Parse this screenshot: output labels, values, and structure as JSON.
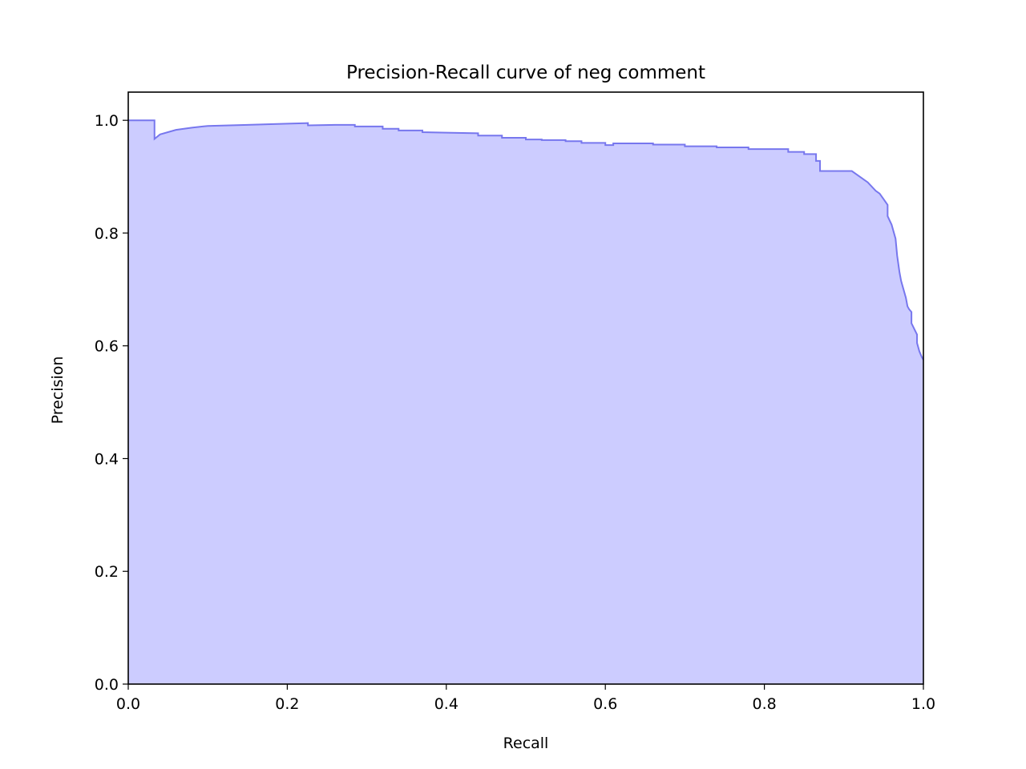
{
  "chart_data": {
    "type": "area",
    "title": "Precision-Recall curve of neg comment",
    "xlabel": "Recall",
    "ylabel": "Precision",
    "xlim": [
      0.0,
      1.0
    ],
    "ylim": [
      0.0,
      1.05
    ],
    "xticks": [
      "0.0",
      "0.2",
      "0.4",
      "0.6",
      "0.8",
      "1.0"
    ],
    "yticks": [
      "0.0",
      "0.2",
      "0.4",
      "0.6",
      "0.8",
      "1.0"
    ],
    "grid": false,
    "legend": "none",
    "line_color": "#7777ee",
    "fill_color": "#ccccff",
    "series": [
      {
        "x": [
          0.0,
          0.033,
          0.033,
          0.04,
          0.06,
          0.08,
          0.1,
          0.15,
          0.2,
          0.226,
          0.226,
          0.26,
          0.285,
          0.285,
          0.32,
          0.32,
          0.34,
          0.34,
          0.37,
          0.37,
          0.4,
          0.44,
          0.44,
          0.47,
          0.47,
          0.5,
          0.5,
          0.52,
          0.52,
          0.55,
          0.55,
          0.57,
          0.57,
          0.6,
          0.6,
          0.61,
          0.61,
          0.66,
          0.66,
          0.7,
          0.7,
          0.74,
          0.74,
          0.78,
          0.78,
          0.83,
          0.83,
          0.85,
          0.85,
          0.865,
          0.865,
          0.87,
          0.87,
          0.91,
          0.92,
          0.93,
          0.94,
          0.945,
          0.95,
          0.955,
          0.955,
          0.96,
          0.963,
          0.965,
          0.967,
          0.97,
          0.972,
          0.975,
          0.978,
          0.98,
          0.982,
          0.985,
          0.985,
          0.992,
          0.992,
          0.995,
          0.998,
          1.0
        ],
        "y": [
          1.0,
          1.0,
          0.967,
          0.975,
          0.983,
          0.987,
          0.99,
          0.992,
          0.994,
          0.995,
          0.991,
          0.992,
          0.992,
          0.989,
          0.989,
          0.985,
          0.985,
          0.982,
          0.982,
          0.979,
          0.978,
          0.977,
          0.973,
          0.973,
          0.969,
          0.969,
          0.966,
          0.966,
          0.965,
          0.965,
          0.963,
          0.963,
          0.96,
          0.96,
          0.956,
          0.956,
          0.959,
          0.959,
          0.957,
          0.957,
          0.954,
          0.954,
          0.952,
          0.952,
          0.949,
          0.949,
          0.944,
          0.944,
          0.94,
          0.94,
          0.928,
          0.928,
          0.91,
          0.91,
          0.9,
          0.89,
          0.875,
          0.87,
          0.86,
          0.85,
          0.83,
          0.815,
          0.8,
          0.79,
          0.76,
          0.73,
          0.715,
          0.7,
          0.685,
          0.67,
          0.665,
          0.66,
          0.64,
          0.62,
          0.605,
          0.59,
          0.58,
          0.575
        ]
      }
    ]
  }
}
